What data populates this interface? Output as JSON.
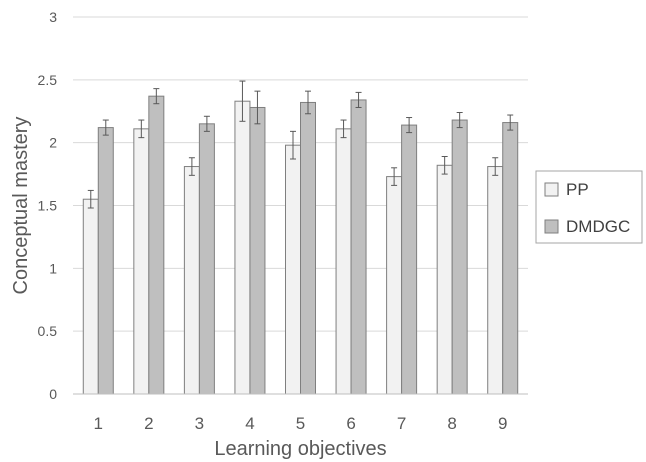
{
  "chart_data": {
    "type": "bar",
    "categories": [
      "1",
      "2",
      "3",
      "4",
      "5",
      "6",
      "7",
      "8",
      "9"
    ],
    "series": [
      {
        "name": "PP",
        "color": "#f2f2f2",
        "values": [
          1.55,
          2.11,
          1.81,
          2.33,
          1.98,
          2.11,
          1.73,
          1.82,
          1.81
        ],
        "errors": [
          0.07,
          0.07,
          0.07,
          0.16,
          0.11,
          0.07,
          0.07,
          0.07,
          0.07
        ]
      },
      {
        "name": "DMDGC",
        "color": "#bfbfbf",
        "values": [
          2.12,
          2.37,
          2.15,
          2.28,
          2.32,
          2.34,
          2.14,
          2.18,
          2.16
        ],
        "errors": [
          0.06,
          0.06,
          0.06,
          0.13,
          0.09,
          0.06,
          0.06,
          0.06,
          0.06
        ]
      }
    ],
    "xlabel": "Learning objectives",
    "ylabel": "Conceptual mastery",
    "ylim": [
      0,
      3
    ],
    "yticks": [
      "0",
      "0.5",
      "1",
      "1.5",
      "2",
      "2.5",
      "3"
    ],
    "grid": true,
    "legend": "right"
  }
}
